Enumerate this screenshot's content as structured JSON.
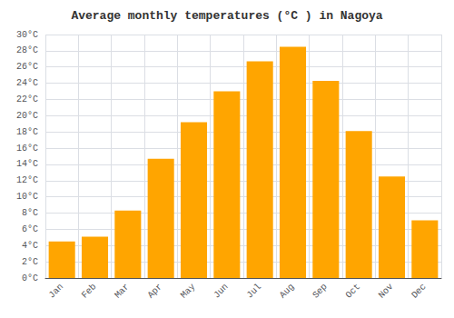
{
  "chart_data": {
    "type": "bar",
    "title": "Average monthly temperatures (°C ) in Nagoya",
    "categories": [
      "Jan",
      "Feb",
      "Mar",
      "Apr",
      "May",
      "Jun",
      "Jul",
      "Aug",
      "Sep",
      "Oct",
      "Nov",
      "Dec"
    ],
    "values": [
      4.5,
      5.1,
      8.3,
      14.7,
      19.2,
      23.0,
      26.7,
      28.5,
      24.3,
      18.1,
      12.5,
      7.1
    ],
    "color": "#FFA500",
    "ylim": [
      0,
      30
    ],
    "yticks": [
      {
        "value": 0,
        "label": "0°C"
      },
      {
        "value": 2,
        "label": "2°C"
      },
      {
        "value": 4,
        "label": "4°C"
      },
      {
        "value": 6,
        "label": "6°C"
      },
      {
        "value": 8,
        "label": "8°C"
      },
      {
        "value": 10,
        "label": "10°C"
      },
      {
        "value": 12,
        "label": "12°C"
      },
      {
        "value": 14,
        "label": "14°C"
      },
      {
        "value": 16,
        "label": "16°C"
      },
      {
        "value": 18,
        "label": "18°C"
      },
      {
        "value": 20,
        "label": "20°C"
      },
      {
        "value": 22,
        "label": "22°C"
      },
      {
        "value": 24,
        "label": "24°C"
      },
      {
        "value": 26,
        "label": "26°C"
      },
      {
        "value": 28,
        "label": "28°C"
      },
      {
        "value": 30,
        "label": "30°C"
      }
    ],
    "grid": true
  }
}
